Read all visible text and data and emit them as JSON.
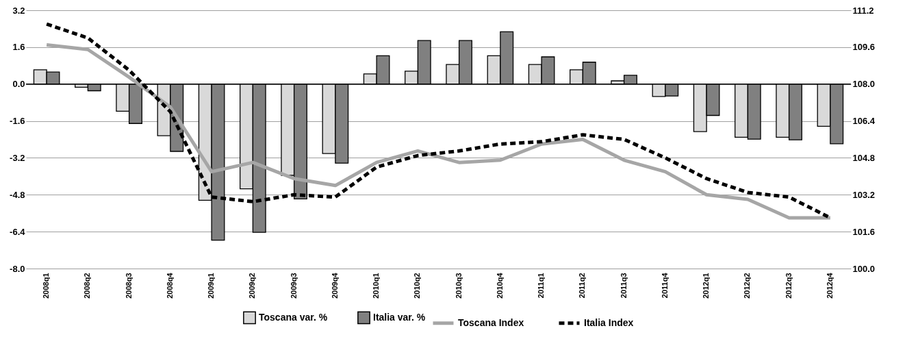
{
  "chart_data": {
    "type": "bar",
    "categories": [
      "2008q1",
      "2008q2",
      "2008q3",
      "2008q4",
      "2009q1",
      "2009q2",
      "2009q3",
      "2009q4",
      "2010q1",
      "2010q2",
      "2010q3",
      "2010q4",
      "2011q1",
      "2011q2",
      "2011q3",
      "2011q4",
      "2012q1",
      "2012q2",
      "2012q3",
      "2012q4"
    ],
    "series": [
      {
        "name": "Toscana var. %",
        "color": "#d9d9d9",
        "values": [
          0.62,
          -0.14,
          -1.18,
          -2.24,
          -5.04,
          -4.54,
          -3.96,
          -3.01,
          0.44,
          0.56,
          0.85,
          1.23,
          0.85,
          0.62,
          0.14,
          -0.54,
          -2.06,
          -2.31,
          -2.31,
          -1.83
        ]
      },
      {
        "name": "Italia var. %",
        "color": "#808080",
        "values": [
          0.52,
          -0.29,
          -1.71,
          -2.92,
          -6.77,
          -6.43,
          -4.98,
          -3.43,
          1.23,
          1.89,
          1.89,
          2.27,
          1.18,
          0.95,
          0.38,
          -0.52,
          -1.36,
          -2.39,
          -2.42,
          -2.59
        ]
      },
      {
        "name": "Toscana Index",
        "type": "line",
        "axis": "y2",
        "color": "#a6a6a6",
        "line_style": "solid",
        "values": [
          109.7,
          109.5,
          108.3,
          107.0,
          104.2,
          104.6,
          103.9,
          103.6,
          104.6,
          105.1,
          104.6,
          104.7,
          105.4,
          105.6,
          104.7,
          104.2,
          103.2,
          103.0,
          102.2,
          102.2
        ]
      },
      {
        "name": "Italia Index",
        "type": "line",
        "axis": "y2",
        "color": "#000000",
        "line_style": "dashed",
        "values": [
          110.6,
          110.0,
          108.6,
          106.8,
          103.1,
          102.9,
          103.2,
          103.1,
          104.4,
          104.9,
          105.1,
          105.4,
          105.5,
          105.8,
          105.6,
          104.8,
          103.9,
          103.3,
          103.1,
          102.2
        ]
      }
    ],
    "ylim": [
      -8,
      3.2
    ],
    "yticks": [
      {
        "value": -8,
        "label": "-8.0"
      },
      {
        "value": -6.4,
        "label": "-6.4"
      },
      {
        "value": -4.8,
        "label": "-4.8"
      },
      {
        "value": -3.2,
        "label": "-3.2"
      },
      {
        "value": -1.6,
        "label": "-1.6"
      },
      {
        "value": 0,
        "label": "0.0"
      },
      {
        "value": 1.6,
        "label": "1.6"
      },
      {
        "value": 3.2,
        "label": "3.2"
      }
    ],
    "y2lim": [
      100,
      111.2
    ],
    "y2ticks": [
      {
        "value": 100,
        "label": "100.0"
      },
      {
        "value": 101.6,
        "label": "101.6"
      },
      {
        "value": 103.2,
        "label": "103.2"
      },
      {
        "value": 104.8,
        "label": "104.8"
      },
      {
        "value": 106.4,
        "label": "106.4"
      },
      {
        "value": 108,
        "label": "108.0"
      },
      {
        "value": 109.6,
        "label": "109.6"
      },
      {
        "value": 111.2,
        "label": "111.2"
      }
    ],
    "grid": "y",
    "legend": "bottom"
  }
}
